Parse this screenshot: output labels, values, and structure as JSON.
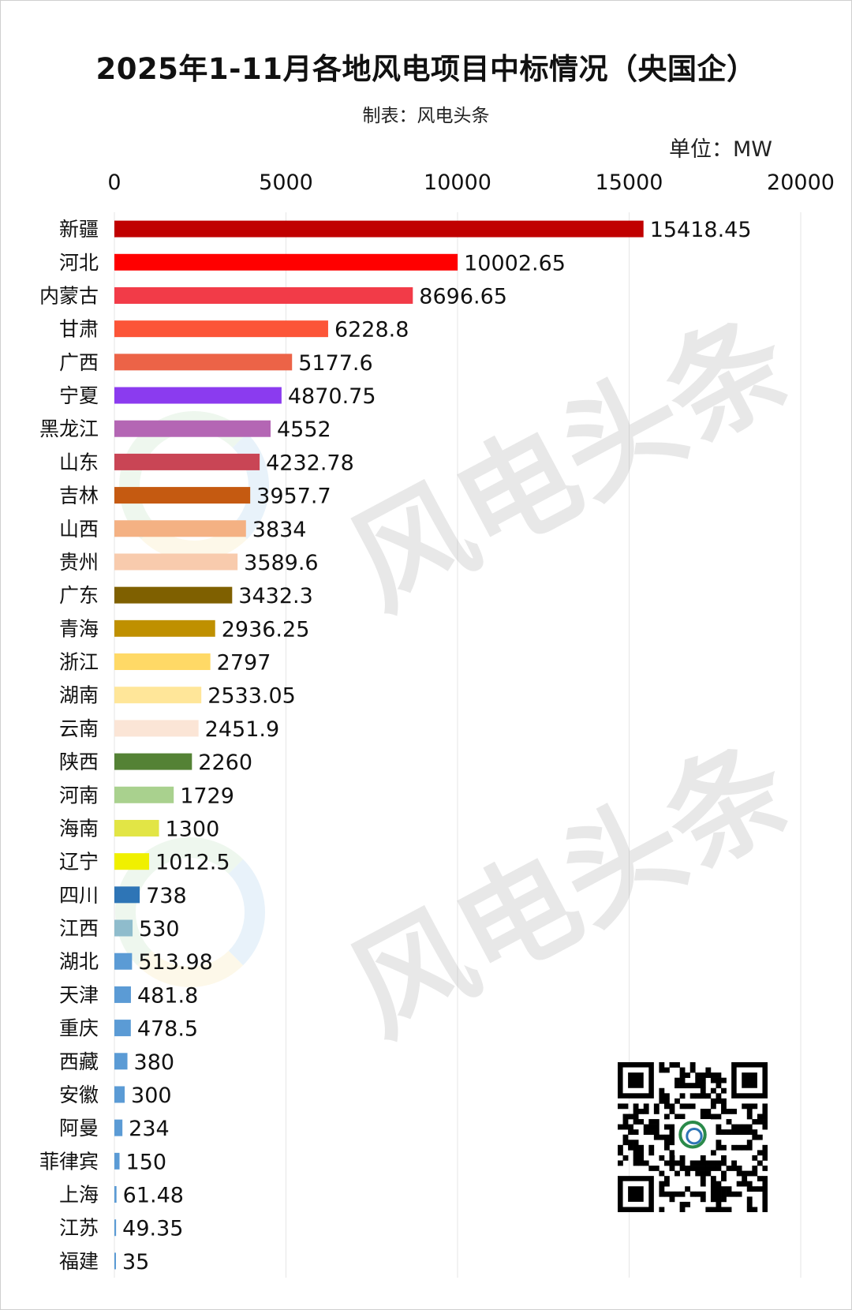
{
  "chart_data": {
    "type": "bar",
    "orientation": "horizontal",
    "title": "2025年1-11月各地风电项目中标情况（央国企）",
    "subtitle": "制表：风电头条",
    "unit": "单位：MW",
    "xlim": [
      0,
      20000
    ],
    "ticks": [
      "0",
      "5000",
      "10000",
      "15000",
      "20000"
    ],
    "tick_values": [
      0,
      5000,
      10000,
      15000,
      20000
    ],
    "grid": true,
    "categories": [
      "新疆",
      "河北",
      "内蒙古",
      "甘肃",
      "广西",
      "宁夏",
      "黑龙江",
      "山东",
      "吉林",
      "山西",
      "贵州",
      "广东",
      "青海",
      "浙江",
      "湖南",
      "云南",
      "陕西",
      "河南",
      "海南",
      "辽宁",
      "四川",
      "江西",
      "湖北",
      "天津",
      "重庆",
      "西藏",
      "安徽",
      "阿曼",
      "菲律宾",
      "上海",
      "江苏",
      "福建"
    ],
    "values": [
      15418.45,
      10002.65,
      8696.65,
      6228.8,
      5177.6,
      4870.75,
      4552,
      4232.78,
      3957.7,
      3834,
      3589.6,
      3432.3,
      2936.25,
      2797,
      2533.05,
      2451.9,
      2260,
      1729,
      1300,
      1012.5,
      738,
      530,
      513.98,
      481.8,
      478.5,
      380,
      300,
      234,
      150,
      61.48,
      49.35,
      35
    ],
    "value_labels": [
      "15418.45",
      "10002.65",
      "8696.65",
      "6228.8",
      "5177.6",
      "4870.75",
      "4552",
      "4232.78",
      "3957.7",
      "3834",
      "3589.6",
      "3432.3",
      "2936.25",
      "2797",
      "2533.05",
      "2451.9",
      "2260",
      "1729",
      "1300",
      "1012.5",
      "738",
      "530",
      "513.98",
      "481.8",
      "478.5",
      "380",
      "300",
      "234",
      "150",
      "61.48",
      "49.35",
      "35"
    ],
    "colors": [
      "#c00000",
      "#ff0000",
      "#f23b48",
      "#fc5538",
      "#ec6347",
      "#8b3bef",
      "#b466b4",
      "#c94555",
      "#c55a11",
      "#f4b183",
      "#f8cbad",
      "#7f6000",
      "#bf9000",
      "#ffd966",
      "#ffe699",
      "#fbe5d6",
      "#548235",
      "#a9d18e",
      "#e2e545",
      "#f0f000",
      "#2e75b6",
      "#8fbccc",
      "#5b9bd5",
      "#5b9bd5",
      "#5b9bd5",
      "#5b9bd5",
      "#5b9bd5",
      "#5b9bd5",
      "#5b9bd5",
      "#5b9bd5",
      "#5b9bd5",
      "#5b9bd5"
    ]
  },
  "watermark": "风电头条",
  "qr_icon": "qr-code"
}
